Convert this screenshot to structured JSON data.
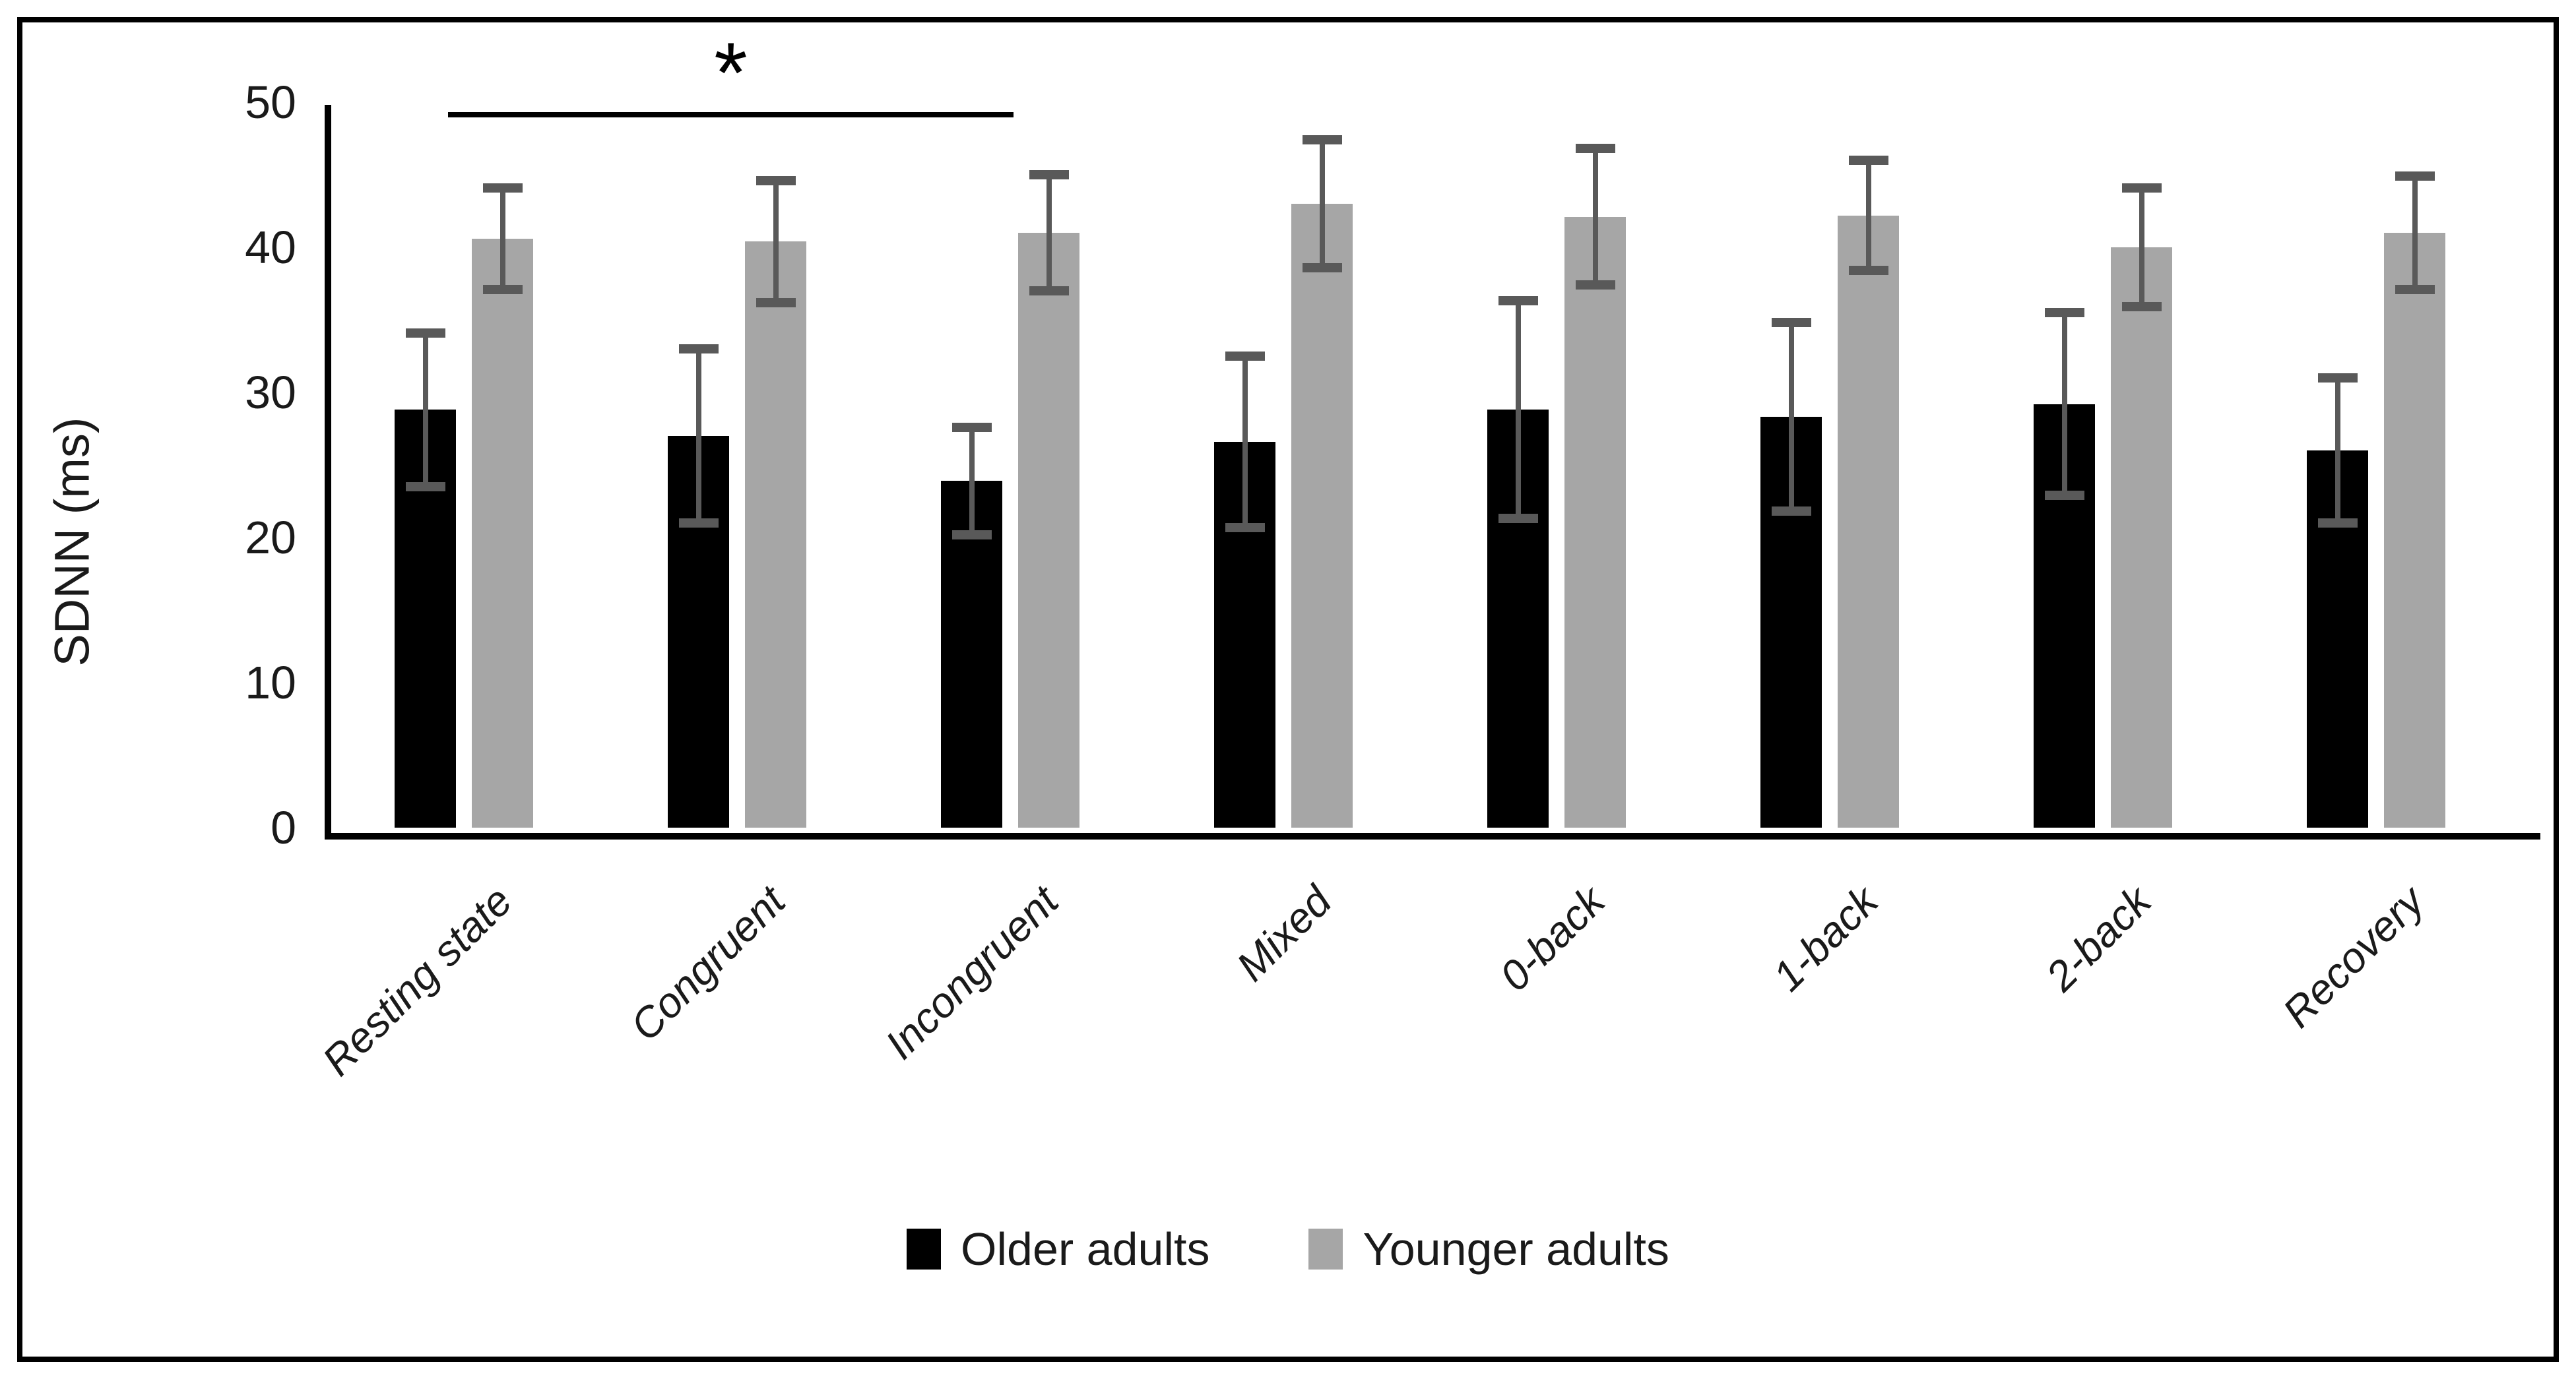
{
  "figure": {
    "ylabel": "SDNN (ms)",
    "significance_symbol": "*"
  },
  "chart_data": {
    "type": "bar",
    "title": "",
    "xlabel": "",
    "ylabel": "SDNN (ms)",
    "ylim": [
      0,
      50
    ],
    "yticks": [
      0,
      10,
      20,
      30,
      40,
      50
    ],
    "grid": false,
    "legend_position": "bottom",
    "error_bar_color": "#595959",
    "categories": [
      "Resting state",
      "Congruent",
      "Incongruent",
      "Mixed",
      "0-back",
      "1-back",
      "2-back",
      "Recovery"
    ],
    "series": [
      {
        "name": "Older adults",
        "color": "#000000",
        "values": [
          28.8,
          27.0,
          23.9,
          26.6,
          28.8,
          28.3,
          29.2,
          26.0
        ],
        "errors": [
          5.3,
          6.0,
          3.7,
          5.9,
          7.5,
          6.5,
          6.3,
          5.0
        ]
      },
      {
        "name": "Younger adults",
        "color": "#a6a6a6",
        "values": [
          40.6,
          40.4,
          41.0,
          43.0,
          42.1,
          42.2,
          40.0,
          41.0
        ],
        "errors": [
          3.5,
          4.2,
          4.0,
          4.4,
          4.7,
          3.8,
          4.1,
          3.9
        ]
      }
    ],
    "annotations": {
      "significance": {
        "symbol": "*",
        "from_index": 0,
        "to_index": 2,
        "y_value": 49.3
      }
    }
  }
}
